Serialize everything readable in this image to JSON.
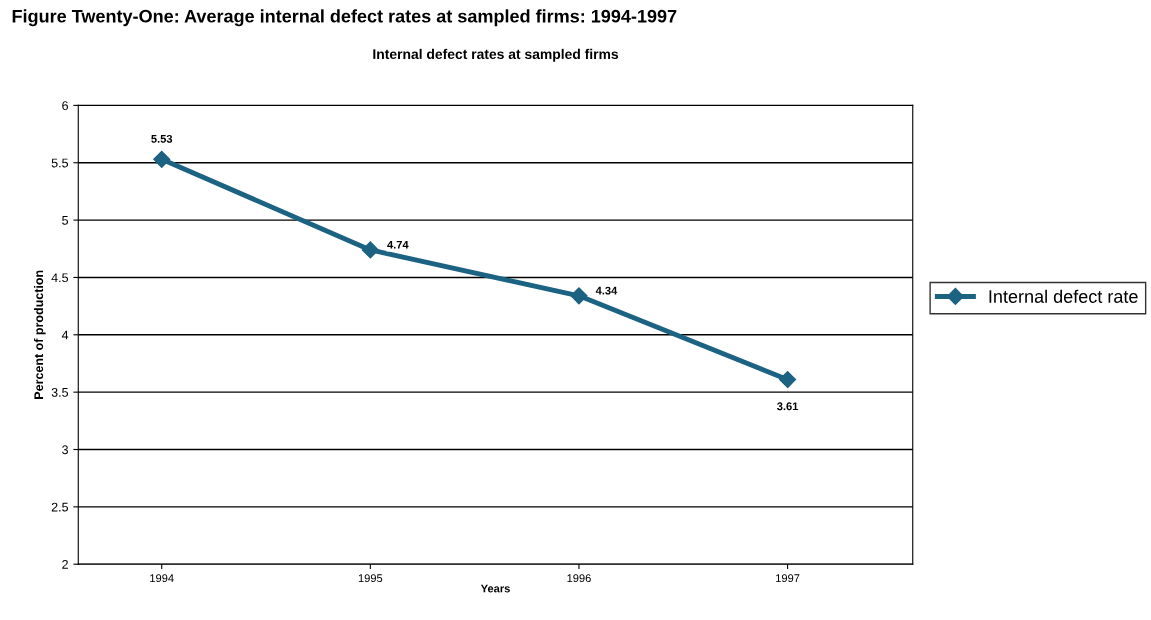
{
  "chart_data": {
    "type": "line",
    "title": "Internal defect rates at sampled firms",
    "annotations": [
      "Figure Twenty-One: Average internal defect rates at sampled firms: 1994-1997"
    ],
    "xlabel": "Years",
    "ylabel": "Percent of production",
    "categories": [
      "1994",
      "1995",
      "1996",
      "1997"
    ],
    "series": [
      {
        "name": "Internal defect rate",
        "color": "#1c6282",
        "values": [
          5.53,
          4.74,
          4.34,
          3.61
        ]
      }
    ],
    "ylim": [
      2,
      6
    ],
    "yticks": [
      2,
      2.5,
      3,
      3.5,
      4,
      4.5,
      5,
      5.5,
      6
    ],
    "grid": "y",
    "legend": "right",
    "marker": "diamond",
    "line_style": "solid",
    "data_labels": true
  }
}
